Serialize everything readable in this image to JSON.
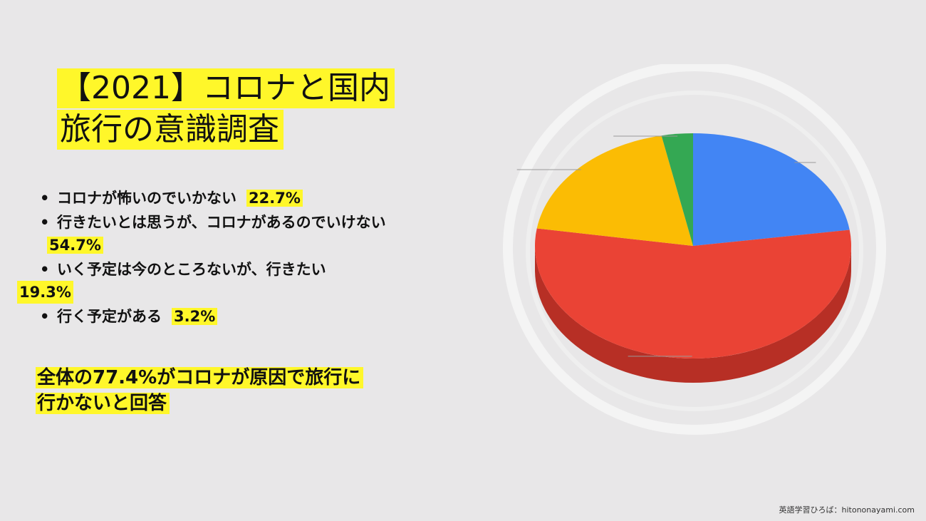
{
  "title": {
    "line1": "【2021】コロナと国内",
    "line2": "旅行の意識調査"
  },
  "bullets": [
    {
      "text": "コロナが怖いのでいかない",
      "pct": "22.7%"
    },
    {
      "text": "行きたいとは思うが、コロナがあるのでいけない",
      "pct": "54.7%"
    },
    {
      "text": "いく予定は今のところないが、行きたい",
      "pct": "19.3%"
    },
    {
      "text": "行く予定がある",
      "pct": "3.2%"
    }
  ],
  "summary": {
    "line1": "全体の77.4%がコロナが原因で旅行に",
    "line2": "行かないと回答"
  },
  "credit": "英語学習ひろば：hitononayami.com",
  "chart_data": {
    "type": "pie",
    "labels": [
      "コロナが怖いのでいかない",
      "行きたいとは思うが、コロナがあるのでいけない",
      "いく予定は今のところないが、行きたい",
      "行く予定がある"
    ],
    "values": [
      22.7,
      54.7,
      19.3,
      3.2
    ],
    "colors": [
      "#4285f4",
      "#ea4335",
      "#fbbc04",
      "#34a853"
    ],
    "shadow_color": "#b72f25",
    "three_d": true,
    "title": "",
    "legend": "none"
  }
}
